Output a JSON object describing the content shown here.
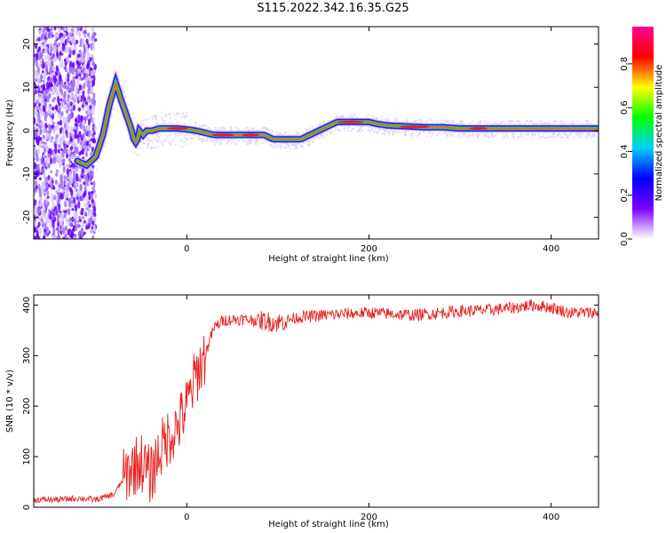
{
  "title": "S115.2022.342.16.35.G25",
  "chart_data": [
    {
      "type": "heatmap",
      "xlabel": "Height of straight line (km)",
      "ylabel": "Frequency (Hz)",
      "xlim": [
        -168,
        452
      ],
      "ylim": [
        -25,
        24
      ],
      "xticks": [
        0,
        200,
        400
      ],
      "yticks": [
        -20,
        -10,
        0,
        10,
        20
      ],
      "colorbar": {
        "label": "Normalized spectral amplitude",
        "ticks": [
          0.0,
          0.2,
          0.4,
          0.6,
          0.8
        ],
        "range": [
          0,
          0.97
        ],
        "colors": [
          "#ffffff",
          "#7a00ff",
          "#0000ff",
          "#00d0ff",
          "#00ff00",
          "#ffff00",
          "#ff0000",
          "#ff0090"
        ]
      },
      "ridge": {
        "x": [
          -120,
          -110,
          -100,
          -92,
          -85,
          -78,
          -72,
          -67,
          -62,
          -58,
          -55,
          -52,
          -48,
          -44,
          -38,
          -30,
          -20,
          -10,
          0,
          10,
          20,
          30,
          50,
          70,
          85,
          95,
          110,
          125,
          135,
          145,
          155,
          165,
          180,
          200,
          210,
          220,
          240,
          260,
          280,
          300,
          320,
          350,
          380,
          420,
          452
        ],
        "y": [
          -7,
          -8,
          -6,
          -1,
          6,
          11,
          7,
          4,
          1,
          -2,
          -3,
          0,
          -1,
          0,
          0,
          0.5,
          0.5,
          0.5,
          0.3,
          0,
          -0.5,
          -1,
          -1,
          -1,
          -1,
          -2,
          -2,
          -2,
          -1,
          0,
          1,
          2,
          2,
          2,
          1.5,
          1.2,
          1,
          0.8,
          0.8,
          0.5,
          0.5,
          0.5,
          0.5,
          0.5,
          0.5
        ]
      }
    },
    {
      "type": "line",
      "xlabel": "Height of straight line (km)",
      "ylabel": "SNR (10 * v/v)",
      "xlim": [
        -168,
        452
      ],
      "ylim": [
        0,
        420
      ],
      "xticks": [
        0,
        200,
        400
      ],
      "yticks": [
        0,
        100,
        200,
        300,
        400
      ],
      "line_color": "#e8201f",
      "series": [
        {
          "x": [
            -168,
            -140,
            -120,
            -100,
            -80,
            -70,
            -60,
            -50,
            -40,
            -30,
            -20,
            -10,
            0,
            10,
            20,
            25,
            30,
            40,
            60,
            80,
            100,
            120,
            150,
            200,
            250,
            300,
            330,
            360,
            380,
            400,
            420,
            452
          ],
          "y": [
            15,
            15,
            18,
            15,
            25,
            55,
            80,
            90,
            60,
            110,
            140,
            160,
            200,
            260,
            300,
            330,
            355,
            370,
            372,
            370,
            365,
            375,
            380,
            385,
            380,
            388,
            390,
            395,
            400,
            395,
            385,
            385
          ]
        }
      ]
    }
  ]
}
